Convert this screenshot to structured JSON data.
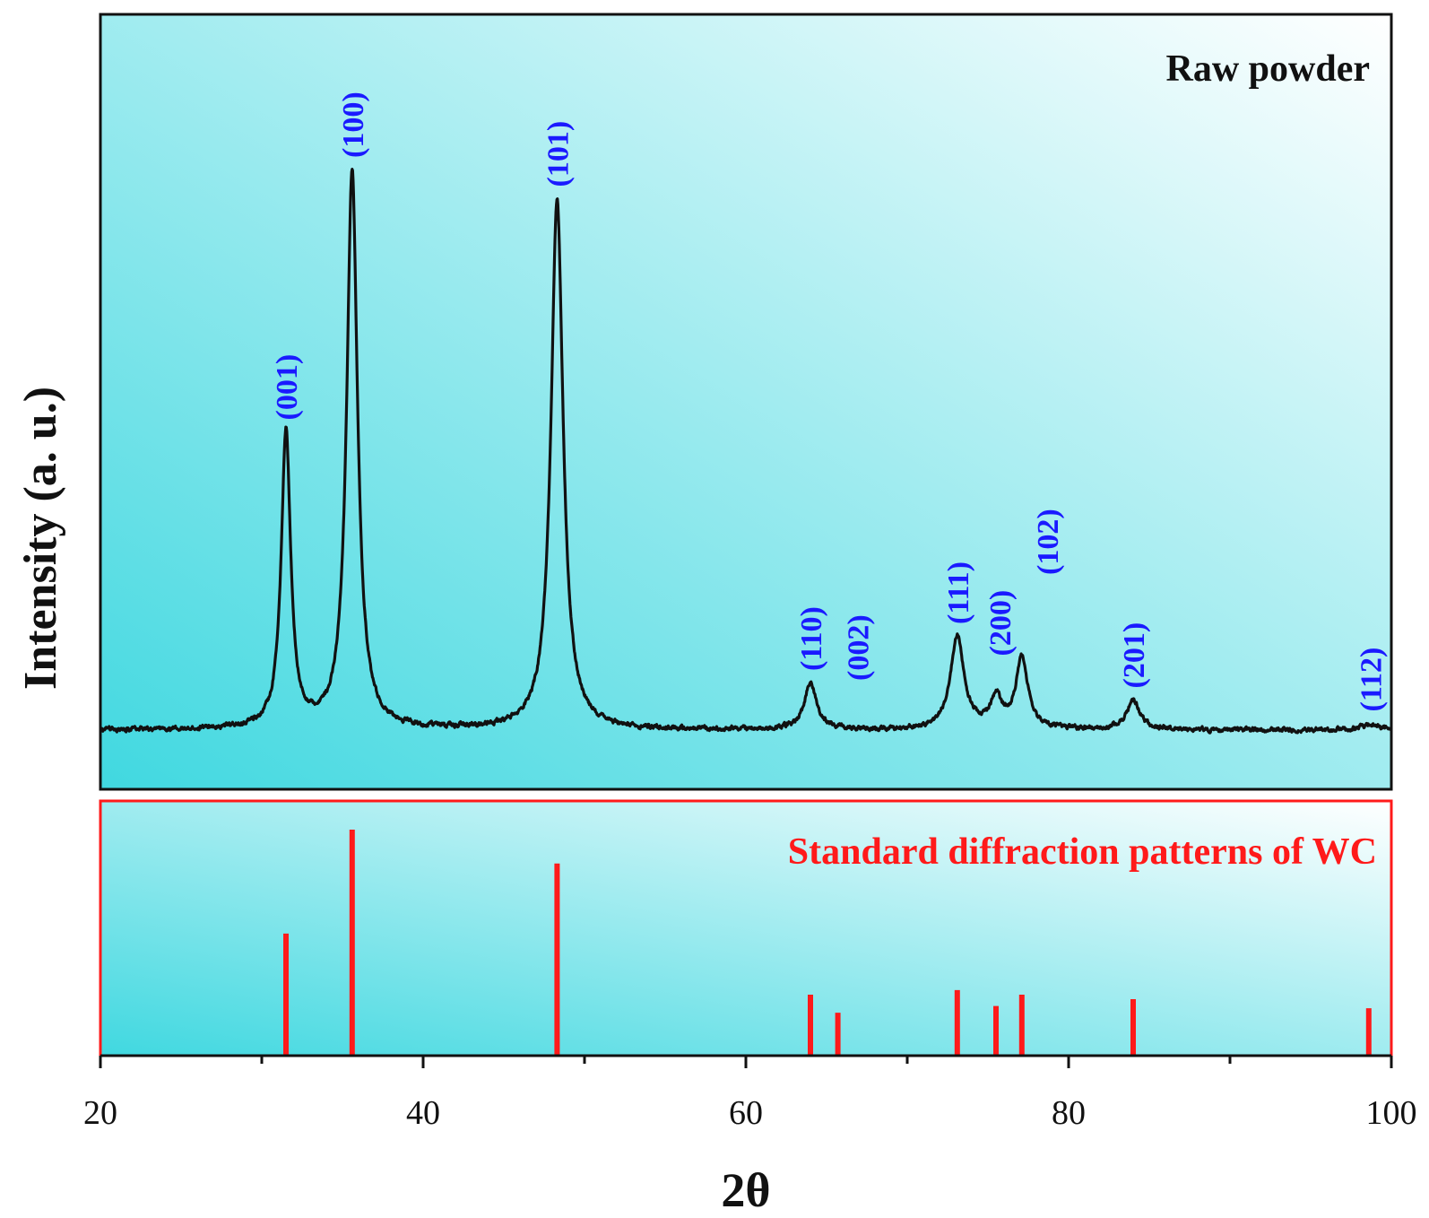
{
  "chart_data": {
    "type": "line",
    "xlabel": "2θ",
    "ylabel": "Intensity (a. u.)",
    "xlim": [
      20,
      100
    ],
    "x_ticks": [
      20,
      40,
      60,
      80,
      100
    ],
    "x_minor_ticks": [
      30,
      50,
      70,
      90
    ],
    "grid": false,
    "colors": {
      "pattern": "#111111",
      "peak_labels": "#1a1aff",
      "reference": "#ff1a1a",
      "background_left": "#40d8e0",
      "background_right": "#ffffff"
    },
    "panels": [
      {
        "title": "Raw powder",
        "title_position": "top-right",
        "baseline": 0.04,
        "peaks": [
          {
            "x": 31.5,
            "y": 0.55,
            "label": "(001)"
          },
          {
            "x": 35.6,
            "y": 1.0,
            "label": "(100)"
          },
          {
            "x": 48.3,
            "y": 0.95,
            "label": "(101)"
          },
          {
            "x": 64.0,
            "y": 0.12,
            "label": "(110)"
          },
          {
            "x": 65.7,
            "y": 0.04,
            "label": "(002)"
          },
          {
            "x": 73.1,
            "y": 0.2,
            "label": "(111)"
          },
          {
            "x": 75.5,
            "y": 0.09,
            "label": "(200)"
          },
          {
            "x": 77.1,
            "y": 0.16,
            "label": "(102)"
          },
          {
            "x": 84.0,
            "y": 0.09,
            "label": "(201)"
          },
          {
            "x": 98.7,
            "y": 0.05,
            "label": "(112)"
          }
        ]
      },
      {
        "title": "Standard diffraction patterns of WC",
        "title_position": "top-right",
        "sticks": [
          {
            "x": 31.5,
            "y": 0.54
          },
          {
            "x": 35.6,
            "y": 1.0
          },
          {
            "x": 48.3,
            "y": 0.85
          },
          {
            "x": 64.0,
            "y": 0.27
          },
          {
            "x": 65.7,
            "y": 0.19
          },
          {
            "x": 73.1,
            "y": 0.29
          },
          {
            "x": 75.5,
            "y": 0.22
          },
          {
            "x": 77.1,
            "y": 0.27
          },
          {
            "x": 84.0,
            "y": 0.25
          },
          {
            "x": 98.6,
            "y": 0.21
          }
        ]
      }
    ]
  }
}
